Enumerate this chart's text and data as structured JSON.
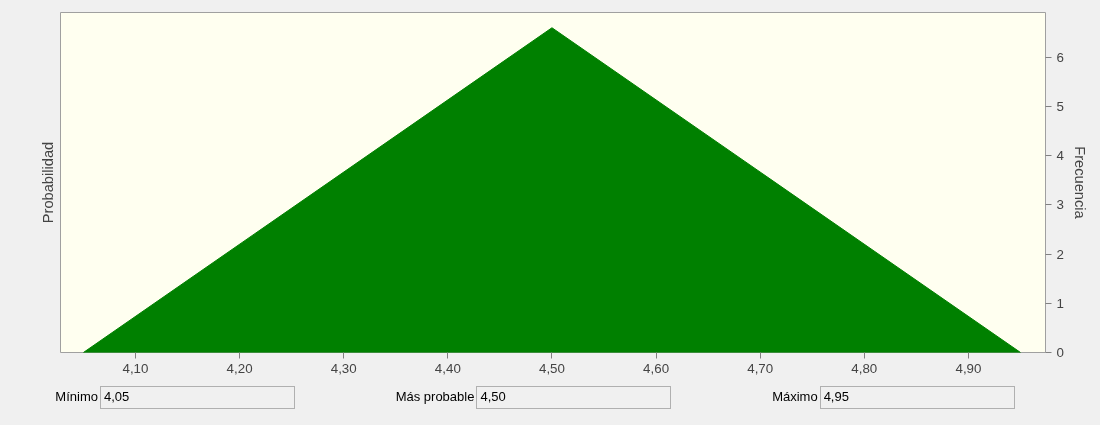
{
  "chart_data": {
    "type": "area",
    "ylabel": "Probabilidad",
    "y2label": "Frecuencia",
    "xlim": [
      4.028,
      4.974
    ],
    "xticks": [
      {
        "value": 4.1,
        "label": "4,10"
      },
      {
        "value": 4.2,
        "label": "4,20"
      },
      {
        "value": 4.3,
        "label": "4,30"
      },
      {
        "value": 4.4,
        "label": "4,40"
      },
      {
        "value": 4.5,
        "label": "4,50"
      },
      {
        "value": 4.6,
        "label": "4,60"
      },
      {
        "value": 4.7,
        "label": "4,70"
      },
      {
        "value": 4.8,
        "label": "4,80"
      },
      {
        "value": 4.9,
        "label": "4,90"
      }
    ],
    "y2lim": [
      0,
      6.91
    ],
    "y2ticks": [
      0,
      1,
      2,
      3,
      4,
      5,
      6
    ],
    "series": [
      {
        "x": [
          4.05,
          4.5,
          4.95
        ],
        "values": [
          0,
          6.6,
          0
        ],
        "color": "#008000",
        "axis": "y2"
      }
    ],
    "grid": false,
    "annotations": [
      "Mínimo",
      "4,05",
      "Más probable",
      "4,50",
      "Máximo",
      "4,95"
    ]
  }
}
